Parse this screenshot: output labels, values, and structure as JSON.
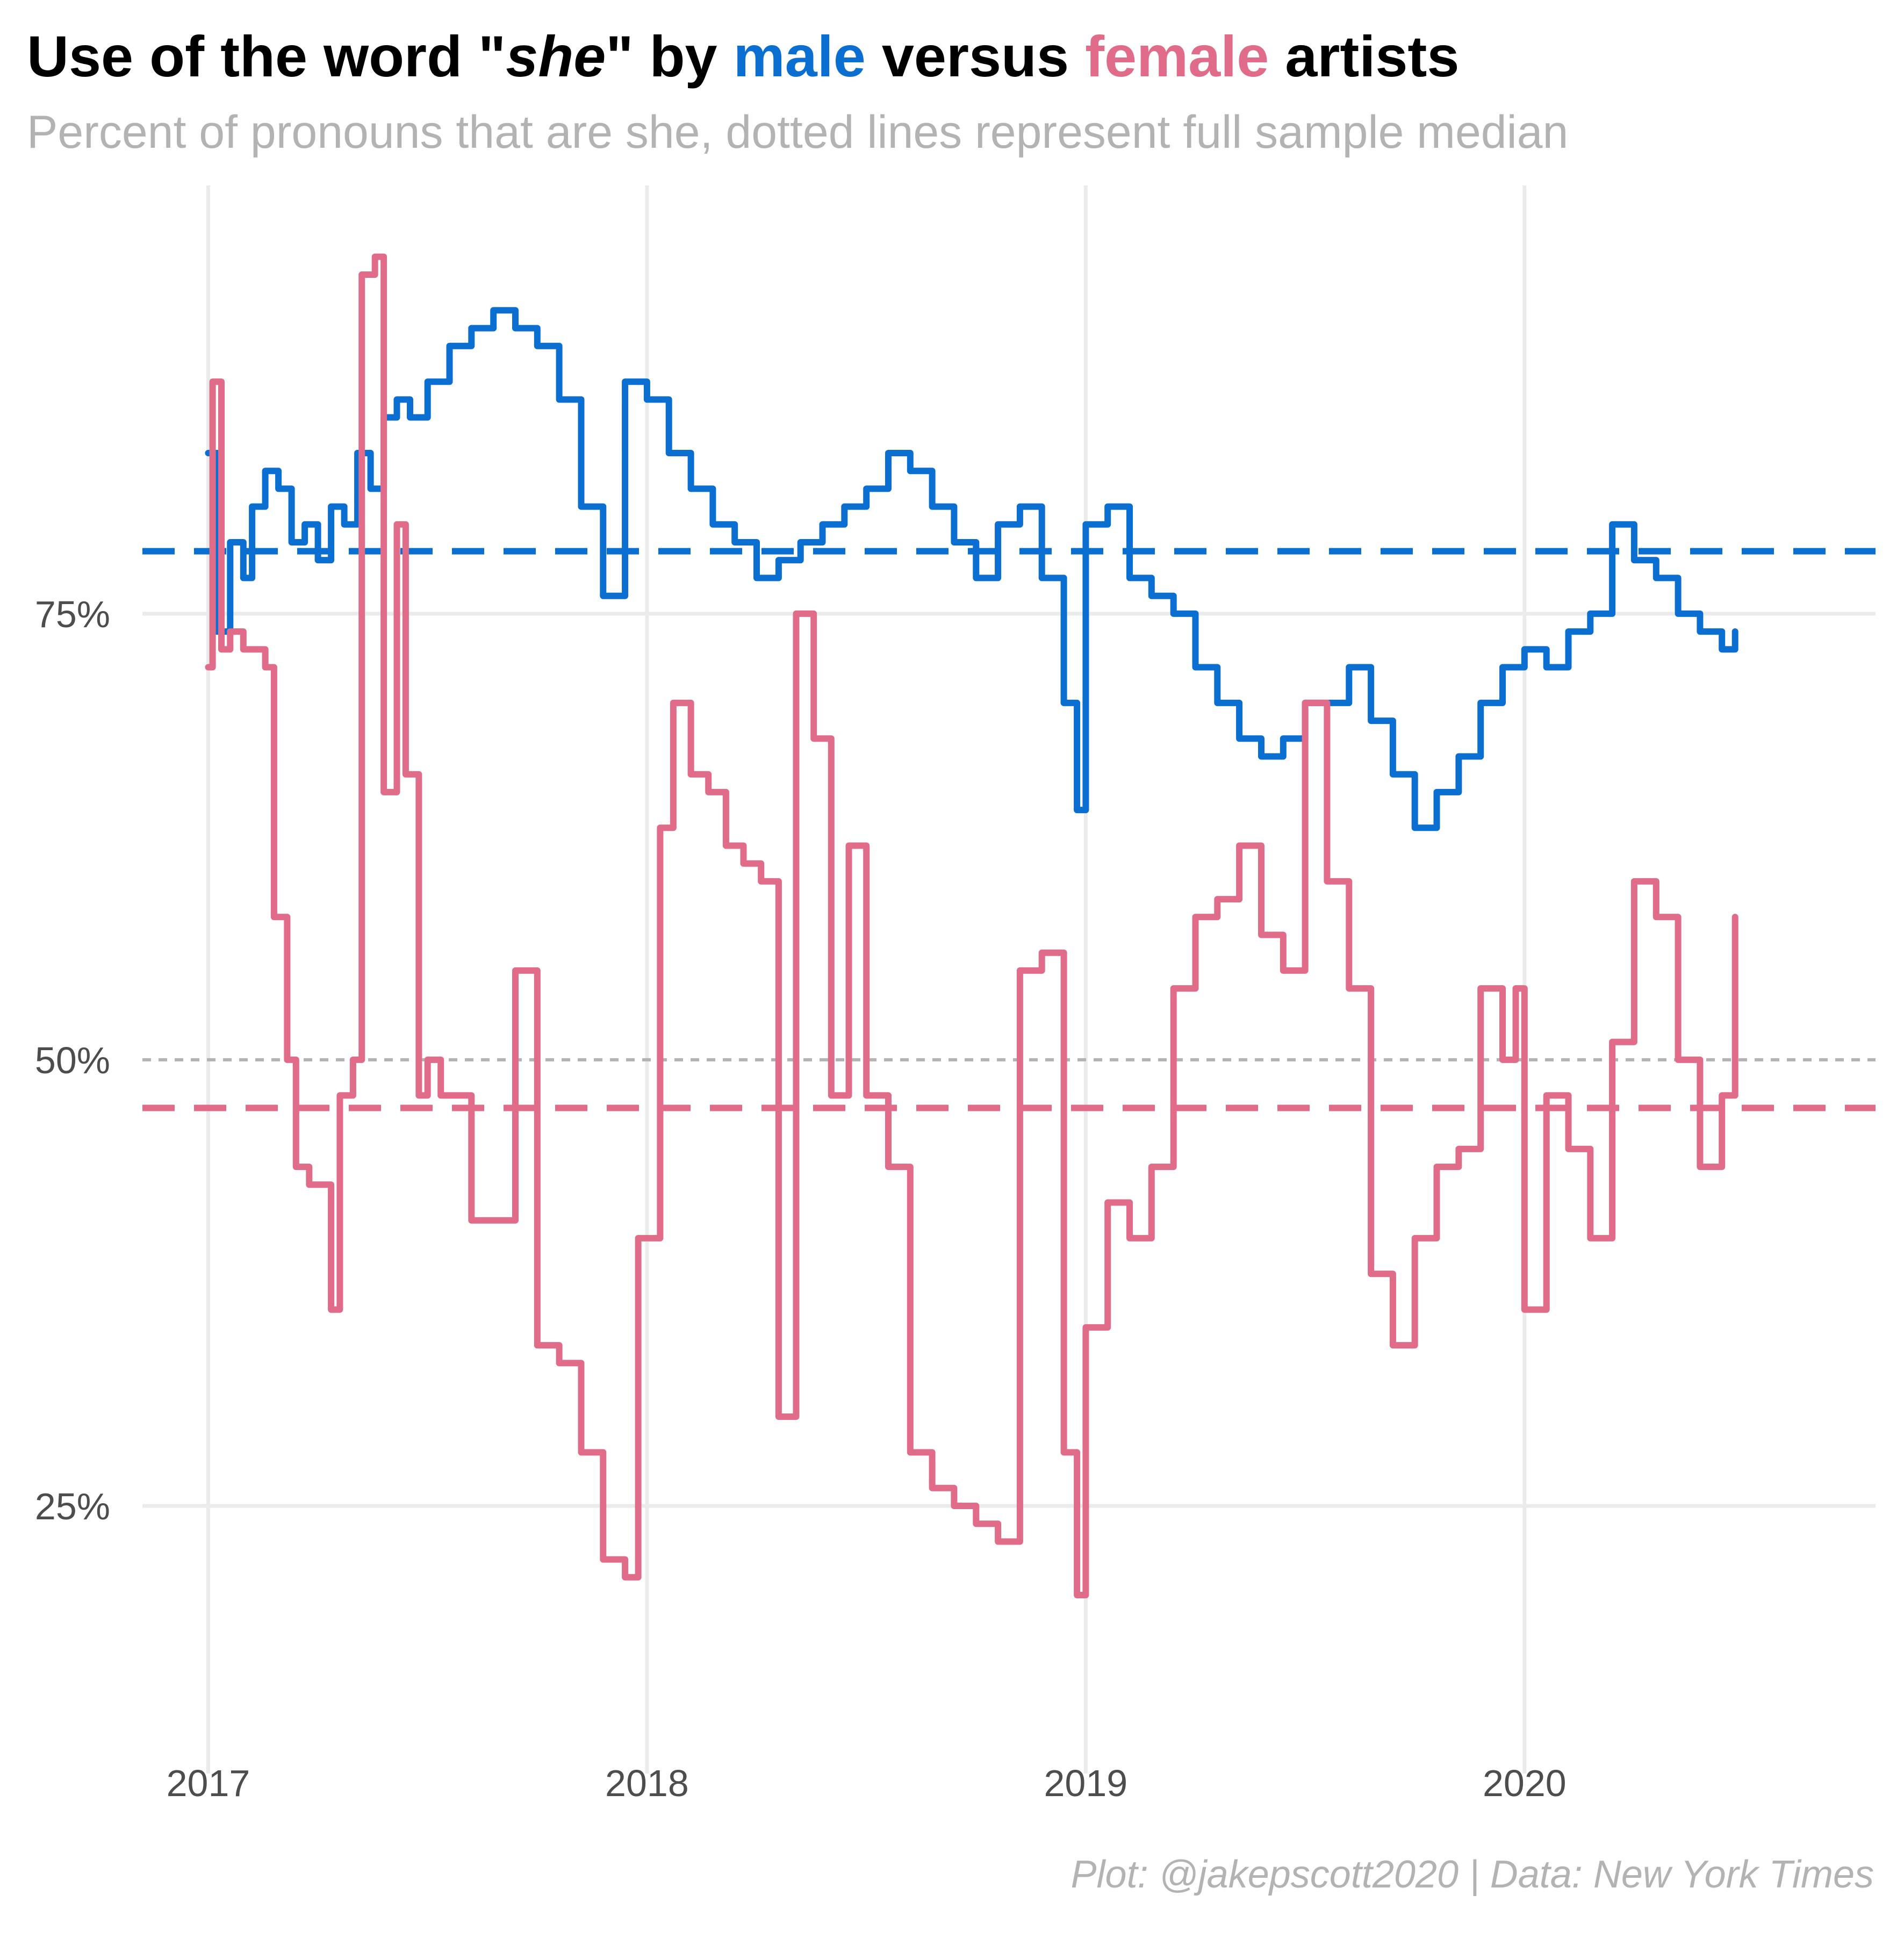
{
  "header": {
    "title_prefix": "Use of the word \"",
    "title_she": "she",
    "title_mid": "\" by ",
    "title_male": "male",
    "title_versus": " versus ",
    "title_female": "female",
    "title_suffix": " artists",
    "subtitle": "Percent of pronouns that are she, dotted lines represent full sample median",
    "caption": "Plot: @jakepscott2020 | Data: New York Times"
  },
  "colors": {
    "male": "#0b6ed1",
    "female": "#e06c8a",
    "grid": "#ebebeb",
    "reference": "#b3b3b3"
  },
  "chart_data": {
    "type": "line",
    "title": "Use of the word \"she\" by male versus female artists",
    "subtitle": "Percent of pronouns that are she, dotted lines represent full sample median",
    "x_tick_labels": [
      "2017",
      "2018",
      "2019",
      "2020"
    ],
    "x_ticks": [
      2017,
      2018,
      2019,
      2020
    ],
    "y_tick_labels": [
      "25%",
      "50%",
      "75%"
    ],
    "y_ticks": [
      25,
      50,
      75
    ],
    "xlim": [
      2016.85,
      2020.8
    ],
    "ylim": [
      10,
      99
    ],
    "grid": true,
    "legend": "none (series named by colored words in title)",
    "reference_lines": [
      {
        "name": "50%",
        "value": 50,
        "style": "dotted",
        "color": "#b3b3b3"
      },
      {
        "name": "male median",
        "value": 78.5,
        "style": "dashed",
        "color": "#0b6ed1"
      },
      {
        "name": "female median",
        "value": 47.3,
        "style": "dashed",
        "color": "#e06c8a"
      }
    ],
    "series": [
      {
        "name": "male",
        "color": "#0b6ed1",
        "x": [
          2017.0,
          2017.02,
          2017.05,
          2017.08,
          2017.1,
          2017.13,
          2017.16,
          2017.19,
          2017.22,
          2017.25,
          2017.28,
          2017.31,
          2017.34,
          2017.37,
          2017.4,
          2017.43,
          2017.46,
          2017.5,
          2017.55,
          2017.6,
          2017.65,
          2017.7,
          2017.75,
          2017.8,
          2017.85,
          2017.9,
          2017.95,
          2017.98,
          2018.0,
          2018.05,
          2018.1,
          2018.15,
          2018.2,
          2018.25,
          2018.3,
          2018.35,
          2018.4,
          2018.45,
          2018.5,
          2018.55,
          2018.6,
          2018.65,
          2018.7,
          2018.75,
          2018.8,
          2018.85,
          2018.9,
          2018.95,
          2018.98,
          2019.0,
          2019.05,
          2019.1,
          2019.15,
          2019.2,
          2019.25,
          2019.3,
          2019.35,
          2019.4,
          2019.45,
          2019.5,
          2019.55,
          2019.6,
          2019.65,
          2019.7,
          2019.75,
          2019.8,
          2019.85,
          2019.9,
          2019.95,
          2020.0,
          2020.05,
          2020.1,
          2020.15,
          2020.2,
          2020.25,
          2020.3,
          2020.35,
          2020.4,
          2020.45,
          2020.48
        ],
        "values": [
          84,
          74,
          79,
          77,
          81,
          83,
          82,
          79,
          80,
          78,
          81,
          80,
          84,
          82,
          86,
          87,
          86,
          88,
          90,
          91,
          92,
          91,
          90,
          87,
          81,
          76,
          88,
          88,
          87,
          84,
          82,
          80,
          79,
          77,
          78,
          79,
          80,
          81,
          82,
          84,
          83,
          81,
          79,
          77,
          80,
          81,
          77,
          70,
          64,
          80,
          81,
          77,
          76,
          75,
          72,
          70,
          68,
          67,
          68,
          70,
          70,
          72,
          69,
          66,
          63,
          65,
          67,
          70,
          72,
          73,
          72,
          74,
          75,
          80,
          78,
          77,
          75,
          74,
          73,
          74
        ]
      },
      {
        "name": "female",
        "color": "#e06c8a",
        "x": [
          2017.0,
          2017.01,
          2017.03,
          2017.05,
          2017.08,
          2017.1,
          2017.13,
          2017.15,
          2017.18,
          2017.2,
          2017.23,
          2017.25,
          2017.28,
          2017.3,
          2017.33,
          2017.35,
          2017.38,
          2017.4,
          2017.43,
          2017.45,
          2017.48,
          2017.5,
          2017.53,
          2017.56,
          2017.6,
          2017.65,
          2017.7,
          2017.75,
          2017.8,
          2017.85,
          2017.9,
          2017.95,
          2017.98,
          2018.0,
          2018.03,
          2018.06,
          2018.1,
          2018.14,
          2018.18,
          2018.22,
          2018.26,
          2018.3,
          2018.34,
          2018.38,
          2018.42,
          2018.46,
          2018.5,
          2018.55,
          2018.6,
          2018.65,
          2018.7,
          2018.75,
          2018.8,
          2018.85,
          2018.9,
          2018.95,
          2018.98,
          2019.0,
          2019.05,
          2019.1,
          2019.15,
          2019.2,
          2019.25,
          2019.3,
          2019.35,
          2019.4,
          2019.45,
          2019.5,
          2019.55,
          2019.6,
          2019.65,
          2019.7,
          2019.75,
          2019.8,
          2019.85,
          2019.9,
          2019.95,
          2019.98,
          2020.0,
          2020.05,
          2020.1,
          2020.15,
          2020.2,
          2020.25,
          2020.3,
          2020.35,
          2020.4,
          2020.45,
          2020.48
        ],
        "values": [
          72,
          88,
          73,
          74,
          73,
          73,
          72,
          58,
          50,
          44,
          43,
          43,
          36,
          48,
          50,
          94,
          95,
          65,
          80,
          66,
          48,
          50,
          48,
          48,
          41,
          41,
          55,
          34,
          33,
          28,
          22,
          21,
          40,
          40,
          63,
          70,
          66,
          65,
          62,
          61,
          60,
          30,
          75,
          68,
          48,
          62,
          48,
          44,
          28,
          26,
          25,
          24,
          23,
          55,
          56,
          28,
          20,
          35,
          42,
          40,
          44,
          54,
          58,
          59,
          62,
          57,
          55,
          70,
          60,
          54,
          38,
          34,
          40,
          44,
          45,
          54,
          50,
          54,
          36,
          48,
          45,
          40,
          51,
          60,
          58,
          50,
          44,
          48,
          58
        ]
      }
    ]
  }
}
